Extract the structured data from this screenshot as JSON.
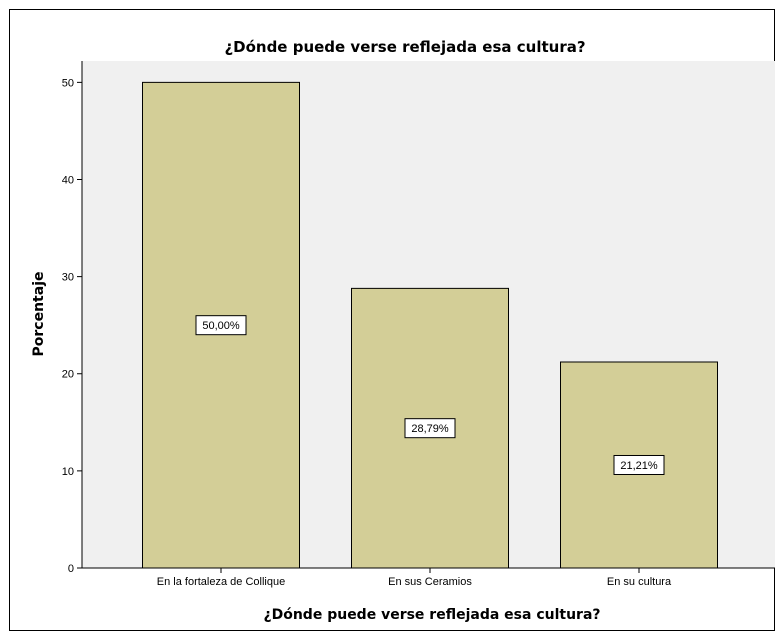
{
  "chart_data": {
    "type": "bar",
    "title": "¿Dónde puede verse reflejada esa cultura?",
    "xlabel": "¿Dónde puede verse reflejada esa cultura?",
    "ylabel": "Porcentaje",
    "categories": [
      "En la fortaleza de Collique",
      "En sus Ceramios",
      "En su cultura"
    ],
    "values": [
      50.0,
      28.79,
      21.21
    ],
    "data_labels": [
      "50,00%",
      "28,79%",
      "21,21%"
    ],
    "yticks": [
      0,
      10,
      20,
      30,
      40,
      50
    ],
    "ylim": [
      0,
      52.2
    ],
    "grid": false,
    "legend": "none",
    "colors": {
      "bar_fill": "#d3ce97",
      "bar_stroke": "#000000",
      "plot_background": "#f0f0f0",
      "page_background": "#ffffff"
    }
  }
}
